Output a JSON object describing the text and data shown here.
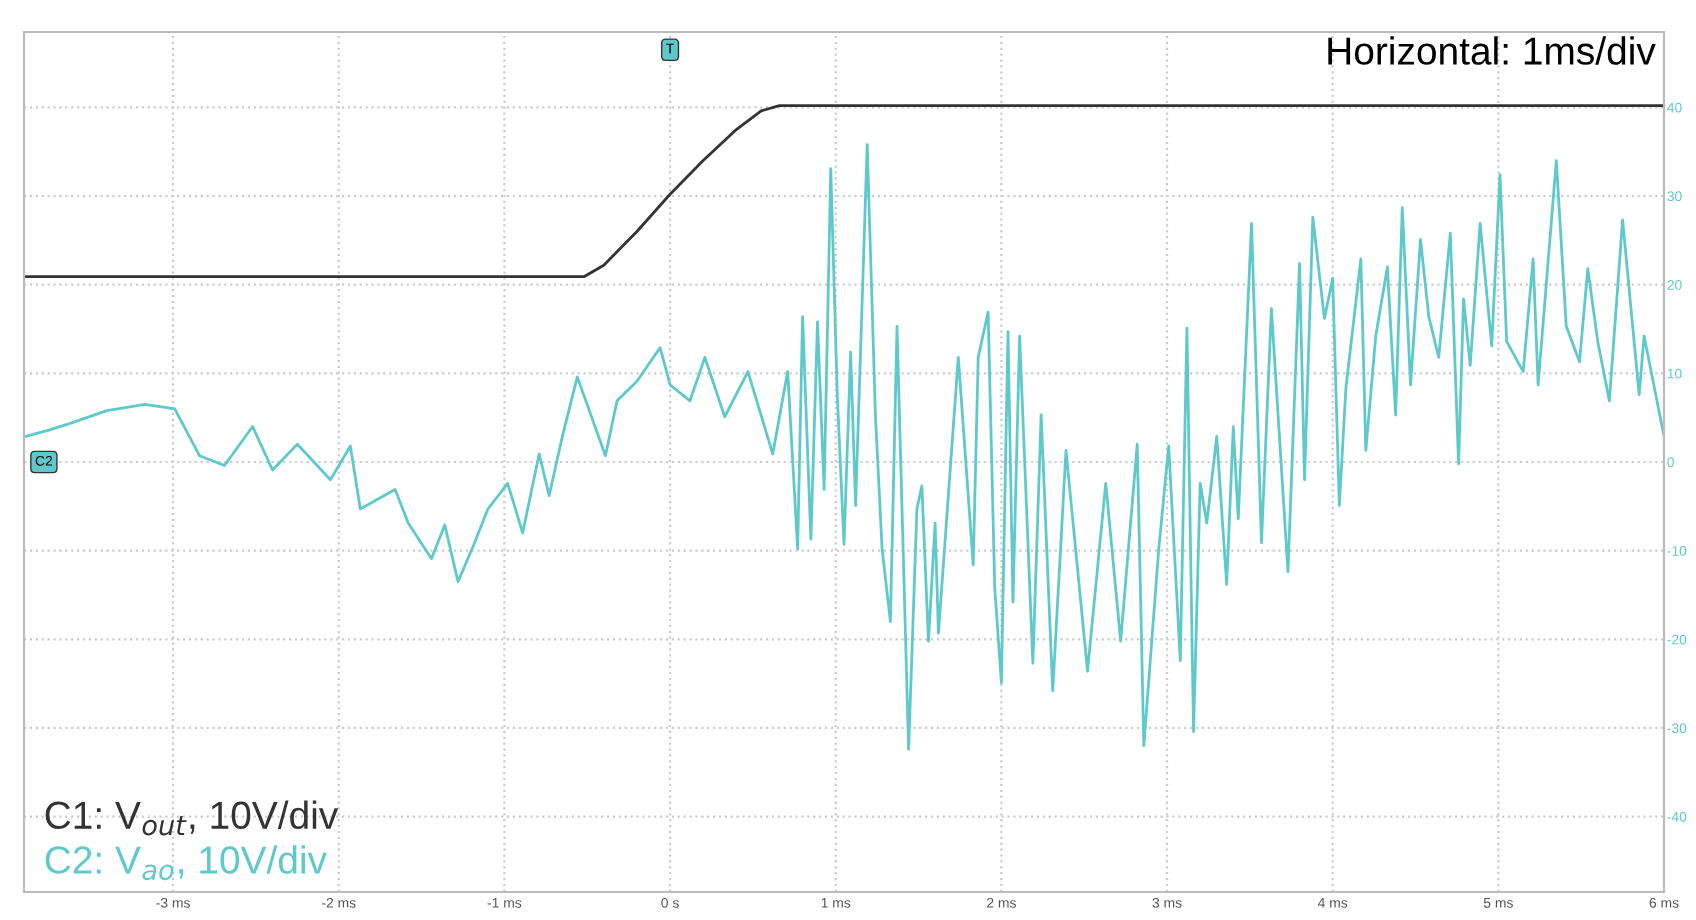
{
  "chart_data": {
    "type": "line",
    "annotations": [
      "Horizontal: 1ms/div",
      {
        "text": "C2",
        "x": -3.78,
        "y": 0
      },
      {
        "text": "T",
        "x": 0,
        "y": 46.5
      }
    ],
    "series": [
      {
        "name": "C1: V$_{out}$, 10V/div",
        "color": "#333333",
        "x": [
          -3.9,
          -0.52,
          -0.4,
          -0.2,
          0,
          0.2,
          0.4,
          0.55,
          0.66,
          6
        ],
        "values": [
          20.9,
          20.9,
          22.2,
          26,
          30.2,
          34,
          37.5,
          39.6,
          40.2,
          40.2
        ]
      },
      {
        "name": "C2: V$_{ao}$, 10V/div",
        "color": "#5ec9cb",
        "x": [
          -3.89,
          -3.75,
          -3.63,
          -3.4,
          -3.17,
          -2.99,
          -2.84,
          -2.69,
          -2.52,
          -2.4,
          -2.25,
          -2.05,
          -1.93,
          -1.87,
          -1.66,
          -1.58,
          -1.44,
          -1.36,
          -1.28,
          -1.18,
          -1.1,
          -0.98,
          -0.89,
          -0.79,
          -0.73,
          -0.65,
          -0.56,
          -0.39,
          -0.32,
          -0.2,
          -0.06,
          0.0,
          0.12,
          0.21,
          0.33,
          0.47,
          0.62,
          0.71,
          0.77,
          0.8,
          0.85,
          0.89,
          0.93,
          0.97,
          1.01,
          1.05,
          1.09,
          1.12,
          1.19,
          1.24,
          1.28,
          1.33,
          1.37,
          1.44,
          1.49,
          1.52,
          1.56,
          1.6,
          1.62,
          1.74,
          1.83,
          1.86,
          1.92,
          1.96,
          2.0,
          2.04,
          2.07,
          2.11,
          2.19,
          2.24,
          2.31,
          2.39,
          2.52,
          2.63,
          2.72,
          2.82,
          2.86,
          2.95,
          3.01,
          3.08,
          3.12,
          3.16,
          3.2,
          3.24,
          3.3,
          3.36,
          3.4,
          3.43,
          3.51,
          3.57,
          3.63,
          3.73,
          3.8,
          3.83,
          3.88,
          3.95,
          4.0,
          4.04,
          4.08,
          4.17,
          4.2,
          4.26,
          4.33,
          4.38,
          4.42,
          4.47,
          4.53,
          4.58,
          4.64,
          4.71,
          4.76,
          4.79,
          4.83,
          4.89,
          4.96,
          5.01,
          5.05,
          5.15,
          5.21,
          5.24,
          5.35,
          5.41,
          5.49,
          5.54,
          5.6,
          5.67,
          5.75,
          5.85,
          5.88,
          6.0
        ],
        "values": [
          2.9,
          3.6,
          4.3,
          5.8,
          6.5,
          6.0,
          0.7,
          -0.4,
          4.0,
          -0.9,
          2.0,
          -2.0,
          1.8,
          -5.3,
          -3.1,
          -6.9,
          -10.9,
          -7.1,
          -13.5,
          -9.1,
          -5.3,
          -2.4,
          -8.0,
          0.9,
          -3.8,
          2.9,
          9.6,
          0.7,
          6.9,
          9.1,
          12.9,
          8.7,
          6.9,
          11.8,
          5.1,
          10.2,
          0.9,
          10.2,
          -9.8,
          16.4,
          -8.7,
          15.8,
          -3.1,
          33.1,
          7.3,
          -9.3,
          12.4,
          -4.9,
          35.8,
          5.1,
          -9.8,
          -18.0,
          15.3,
          -32.4,
          -5.3,
          -2.7,
          -20.2,
          -6.9,
          -19.3,
          11.8,
          -11.6,
          11.8,
          16.9,
          -14.2,
          -24.9,
          14.7,
          -15.8,
          14.2,
          -22.7,
          5.3,
          -25.8,
          1.3,
          -23.6,
          -2.4,
          -20.2,
          2.0,
          -32.0,
          -9.8,
          1.8,
          -22.4,
          15.1,
          -30.4,
          -2.4,
          -6.9,
          2.9,
          -13.8,
          4.0,
          -6.4,
          26.9,
          -9.1,
          17.3,
          -12.4,
          22.4,
          -2.0,
          27.6,
          16.2,
          20.7,
          -4.9,
          8.4,
          22.9,
          1.3,
          14.2,
          22.0,
          5.3,
          28.7,
          8.7,
          25.1,
          16.4,
          11.8,
          25.8,
          -0.2,
          18.4,
          10.9,
          26.9,
          13.1,
          32.4,
          13.6,
          10.2,
          22.9,
          8.7,
          34.0,
          15.3,
          11.3,
          21.8,
          13.6,
          6.9,
          27.3,
          7.6,
          14.2,
          2.9
        ]
      }
    ],
    "xlim": [
      -3.9,
      6
    ],
    "ylim": [
      -48.5,
      48.5
    ],
    "xticks": [
      {
        "value": -3,
        "label": "-3 ms"
      },
      {
        "value": -2,
        "label": "-2 ms"
      },
      {
        "value": -1,
        "label": "-1 ms"
      },
      {
        "value": 0,
        "label": "0 s"
      },
      {
        "value": 1,
        "label": "1 ms"
      },
      {
        "value": 2,
        "label": "2 ms"
      },
      {
        "value": 3,
        "label": "3 ms"
      },
      {
        "value": 4,
        "label": "4 ms"
      },
      {
        "value": 5,
        "label": "5 ms"
      },
      {
        "value": 6,
        "label": "6 ms"
      }
    ],
    "yticks": [
      -40,
      -30,
      -20,
      -10,
      0,
      10,
      20,
      30,
      40
    ],
    "grid": true,
    "marker": "none",
    "line_style": "solid"
  }
}
